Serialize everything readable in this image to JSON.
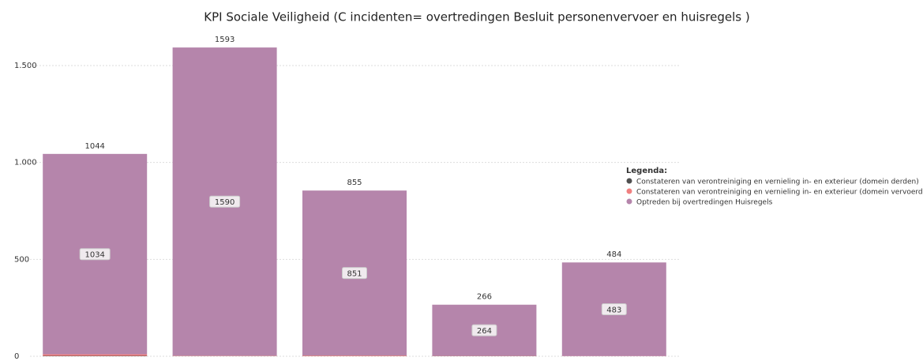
{
  "chart_data": {
    "type": "stacked_bar",
    "title": "KPI Sociale Veiligheid (C incidenten= overtredingen Besluit personenvervoer en huisregels )",
    "categories": [
      null,
      null,
      null,
      null,
      null
    ],
    "series": [
      {
        "name": "Constateren van verontreiniging en vernieling in- en exterieur (domein derden)",
        "color": "#505050",
        "values": [
          2,
          1,
          1,
          1,
          0
        ]
      },
      {
        "name": "Constateren van verontreiniging en vernieling in- en exterieur (domein vervoerder)",
        "color": "#f08080",
        "values": [
          8,
          2,
          3,
          1,
          1
        ]
      },
      {
        "name": "Optreden bij overtredingen Huisregels",
        "color": "#b585ab",
        "values": [
          1034,
          1590,
          851,
          264,
          483
        ]
      }
    ],
    "totals": [
      1044,
      1593,
      855,
      266,
      484
    ],
    "legend_title": "Legenda:",
    "ylim": [
      0,
      1675
    ],
    "yticks": [
      0,
      500,
      {
        "value": 1000,
        "label": "1.000"
      },
      {
        "value": 1500,
        "label": "1.500"
      }
    ],
    "grid": true
  }
}
